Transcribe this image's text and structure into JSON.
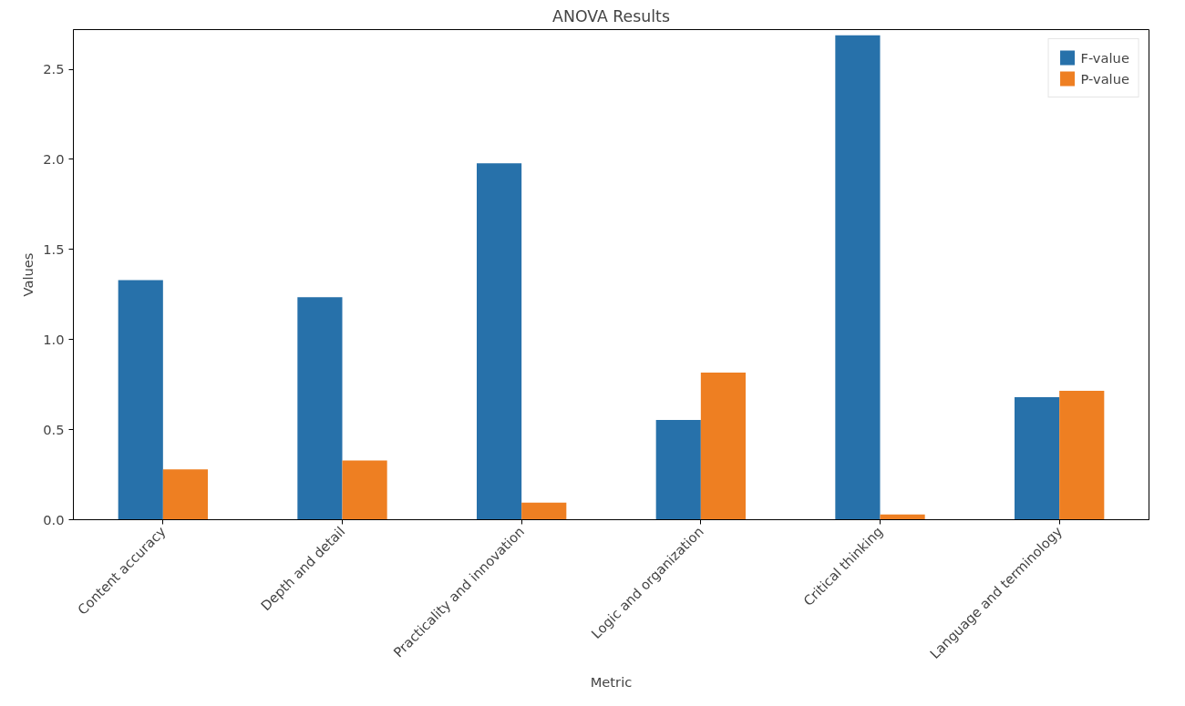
{
  "chart_data": {
    "type": "bar",
    "title": "ANOVA Results",
    "xlabel": "Metric",
    "ylabel": "Values",
    "categories": [
      "Content accuracy",
      "Depth and detail",
      "Practicality and innovation",
      "Logic and organization",
      "Critical thinking",
      "Language and terminology"
    ],
    "series": [
      {
        "name": "F-value",
        "color": "#2771aa",
        "values": [
          1.33,
          1.235,
          1.978,
          0.553,
          2.689,
          0.68
        ]
      },
      {
        "name": "P-value",
        "color": "#ee7f22",
        "values": [
          0.279,
          0.328,
          0.095,
          0.816,
          0.029,
          0.716
        ]
      }
    ],
    "ylim": [
      0,
      2.72
    ],
    "yticks": [
      {
        "value": 0,
        "label": "0.0"
      },
      0.5,
      {
        "value": 1,
        "label": "1.0"
      },
      1.5,
      {
        "value": 2,
        "label": "2.0"
      },
      2.5
    ],
    "grid": false,
    "legend": "top right"
  }
}
